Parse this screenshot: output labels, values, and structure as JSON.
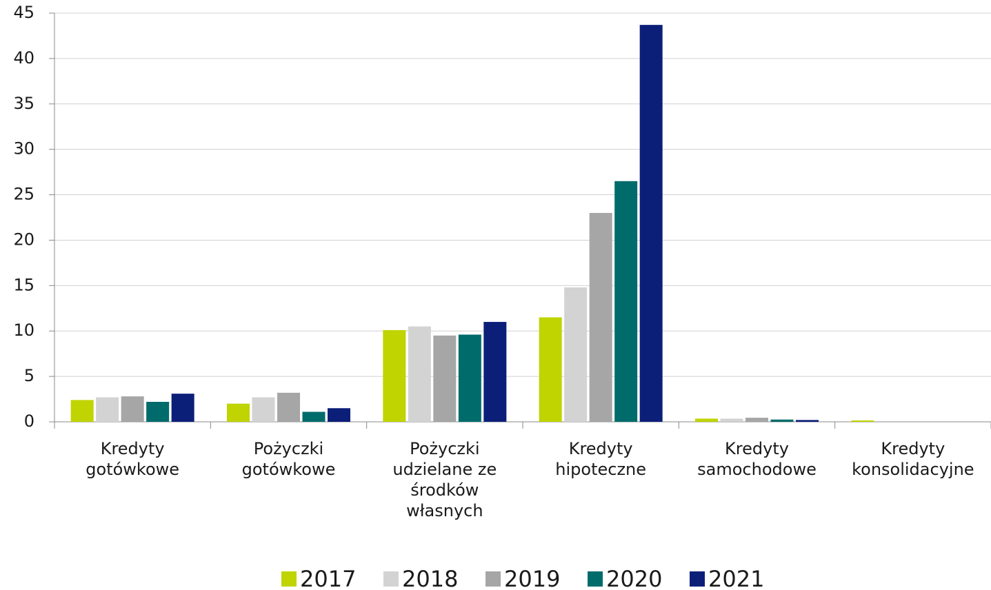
{
  "chart_data": {
    "type": "bar",
    "categories": [
      "Kredyty\ngotówkowe",
      "Pożyczki\ngotówkowe",
      "Pożyczki\nudzielane ze\nśrodków\nwłasnych",
      "Kredyty\nhipoteczne",
      "Kredyty\nsamochodowe",
      "Kredyty\nkonsolidacyjne"
    ],
    "series": [
      {
        "name": "2017",
        "color": "#bfd400",
        "values": [
          2.4,
          2.0,
          10.1,
          11.5,
          0.35,
          0.15
        ]
      },
      {
        "name": "2018",
        "color": "#d3d3d3",
        "values": [
          2.7,
          2.7,
          10.5,
          14.8,
          0.35,
          0
        ]
      },
      {
        "name": "2019",
        "color": "#a6a6a6",
        "values": [
          2.8,
          3.2,
          9.5,
          23.0,
          0.45,
          0.05
        ]
      },
      {
        "name": "2020",
        "color": "#006b6b",
        "values": [
          2.2,
          1.1,
          9.6,
          26.5,
          0.25,
          0
        ]
      },
      {
        "name": "2021",
        "color": "#0c1f78",
        "values": [
          3.1,
          1.5,
          11.0,
          43.7,
          0.2,
          0
        ]
      }
    ],
    "ylim": [
      0,
      45
    ],
    "yticks": [
      0,
      5,
      10,
      15,
      20,
      25,
      30,
      35,
      40,
      45
    ],
    "grid": true,
    "legend": "bottom"
  }
}
